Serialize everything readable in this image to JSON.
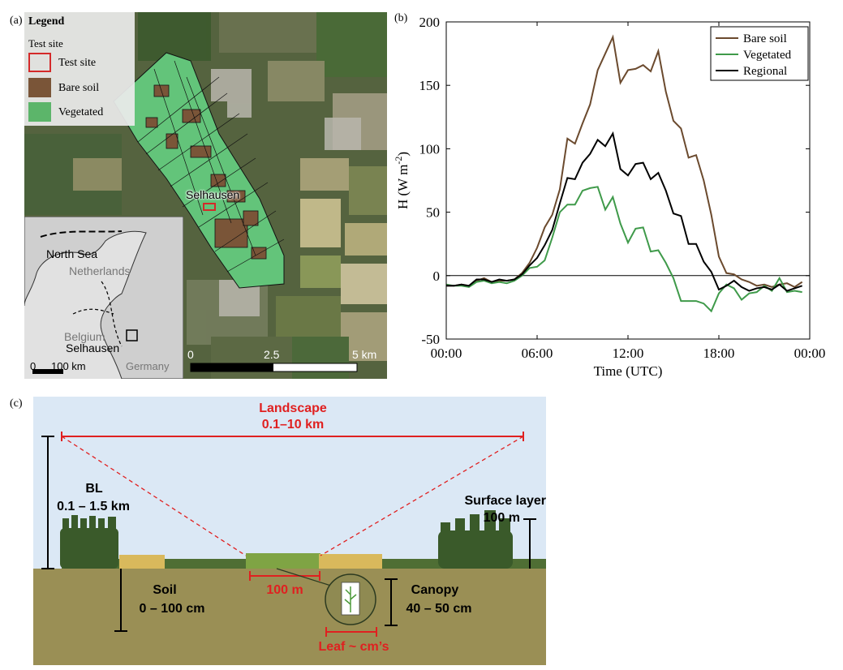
{
  "panels": {
    "a_tag": "(a)",
    "b_tag": "(b)",
    "c_tag": "(c)"
  },
  "map": {
    "legend_title": "Legend",
    "legend_subtitle": "Test site",
    "legend_items": [
      {
        "label": "Test site",
        "color": "#d42a2a"
      },
      {
        "label": "Bare soil",
        "color": "#7a5538"
      },
      {
        "label": "Vegetated",
        "color": "#5cb56a"
      }
    ],
    "site_label": "Selhausen",
    "inset": {
      "north_sea": "North Sea",
      "netherlands": "Netherlands",
      "belgium": "Belgium",
      "selhausen": "Selhausen",
      "germany": "Germany",
      "scale_0": "0",
      "scale_100": "100 km"
    },
    "scale": {
      "zero": "0",
      "mid": "2.5",
      "end": "5 km"
    }
  },
  "chart_data": {
    "type": "line",
    "ylabel": "H (W m",
    "ylabel_sup": "-2",
    "ylabel_close": ")",
    "xlabel": "Time (UTC)",
    "ylim": [
      -50,
      200
    ],
    "xlim": [
      0,
      24
    ],
    "yticks": [
      -50,
      0,
      50,
      100,
      150,
      200
    ],
    "xticks": [
      0,
      6,
      12,
      18,
      24
    ],
    "xticklabels": [
      "00:00",
      "06:00",
      "12:00",
      "18:00",
      "00:00"
    ],
    "zero_line": true,
    "legend_position": "top-right",
    "x": [
      0,
      0.5,
      1,
      1.5,
      2,
      2.5,
      3,
      3.5,
      4,
      4.5,
      5,
      5.5,
      6,
      6.5,
      7,
      7.5,
      8,
      8.5,
      9,
      9.5,
      10,
      10.5,
      11,
      11.5,
      12,
      12.5,
      13,
      13.5,
      14,
      14.5,
      15,
      15.5,
      16,
      16.5,
      17,
      17.5,
      18,
      18.5,
      19,
      19.5,
      20,
      20.5,
      21,
      21.5,
      22,
      22.5,
      23,
      23.5
    ],
    "series": [
      {
        "name": "Bare soil",
        "color": "#6b4a2e",
        "values": [
          -8,
          -8,
          -7,
          -8,
          -4,
          -2,
          -5,
          -4,
          -4,
          -3,
          2,
          10,
          22,
          38,
          48,
          68,
          108,
          104,
          120,
          135,
          162,
          175,
          188,
          152,
          162,
          163,
          166,
          161,
          177,
          145,
          122,
          116,
          93,
          95,
          75,
          48,
          15,
          2,
          1,
          -3,
          -5,
          -8,
          -7,
          -9,
          -7,
          -6,
          -9,
          -5
        ]
      },
      {
        "name": "Vegetated",
        "color": "#3f9a4a",
        "values": [
          -7,
          -8,
          -8,
          -9,
          -5,
          -4,
          -6,
          -5,
          -6,
          -4,
          0,
          6,
          7,
          12,
          30,
          50,
          56,
          56,
          67,
          69,
          70,
          52,
          62,
          41,
          26,
          37,
          38,
          19,
          20,
          10,
          -2,
          -20,
          -20,
          -20,
          -22,
          -28,
          -14,
          -7,
          -10,
          -19,
          -14,
          -13,
          -8,
          -12,
          -2,
          -13,
          -12,
          -13
        ]
      },
      {
        "name": "Regional",
        "color": "#000000",
        "values": [
          -8,
          -8,
          -7,
          -8,
          -3,
          -3,
          -5,
          -3,
          -4,
          -3,
          1,
          8,
          14,
          24,
          36,
          57,
          77,
          76,
          89,
          96,
          107,
          102,
          112,
          84,
          79,
          88,
          89,
          76,
          81,
          67,
          49,
          47,
          25,
          25,
          11,
          3,
          -11,
          -8,
          -4,
          -9,
          -12,
          -10,
          -9,
          -11,
          -7,
          -12,
          -10,
          -8
        ]
      }
    ]
  },
  "schematic": {
    "landscape_title": "Landscape",
    "landscape_range": "0.1–10 km",
    "bl_title": "BL",
    "bl_range": "0.1 – 1.5 km",
    "surface_title": "Surface layer",
    "surface_range": "100 m",
    "soil_title": "Soil",
    "soil_range": "0 – 100 cm",
    "field_size": "100 m",
    "canopy_title": "Canopy",
    "canopy_range": "40 – 50 cm",
    "leaf": "Leaf ~ cm’s",
    "colors": {
      "sky": "#dbe8f5",
      "soil": "#9a8f55",
      "accent": "#e02020"
    }
  }
}
